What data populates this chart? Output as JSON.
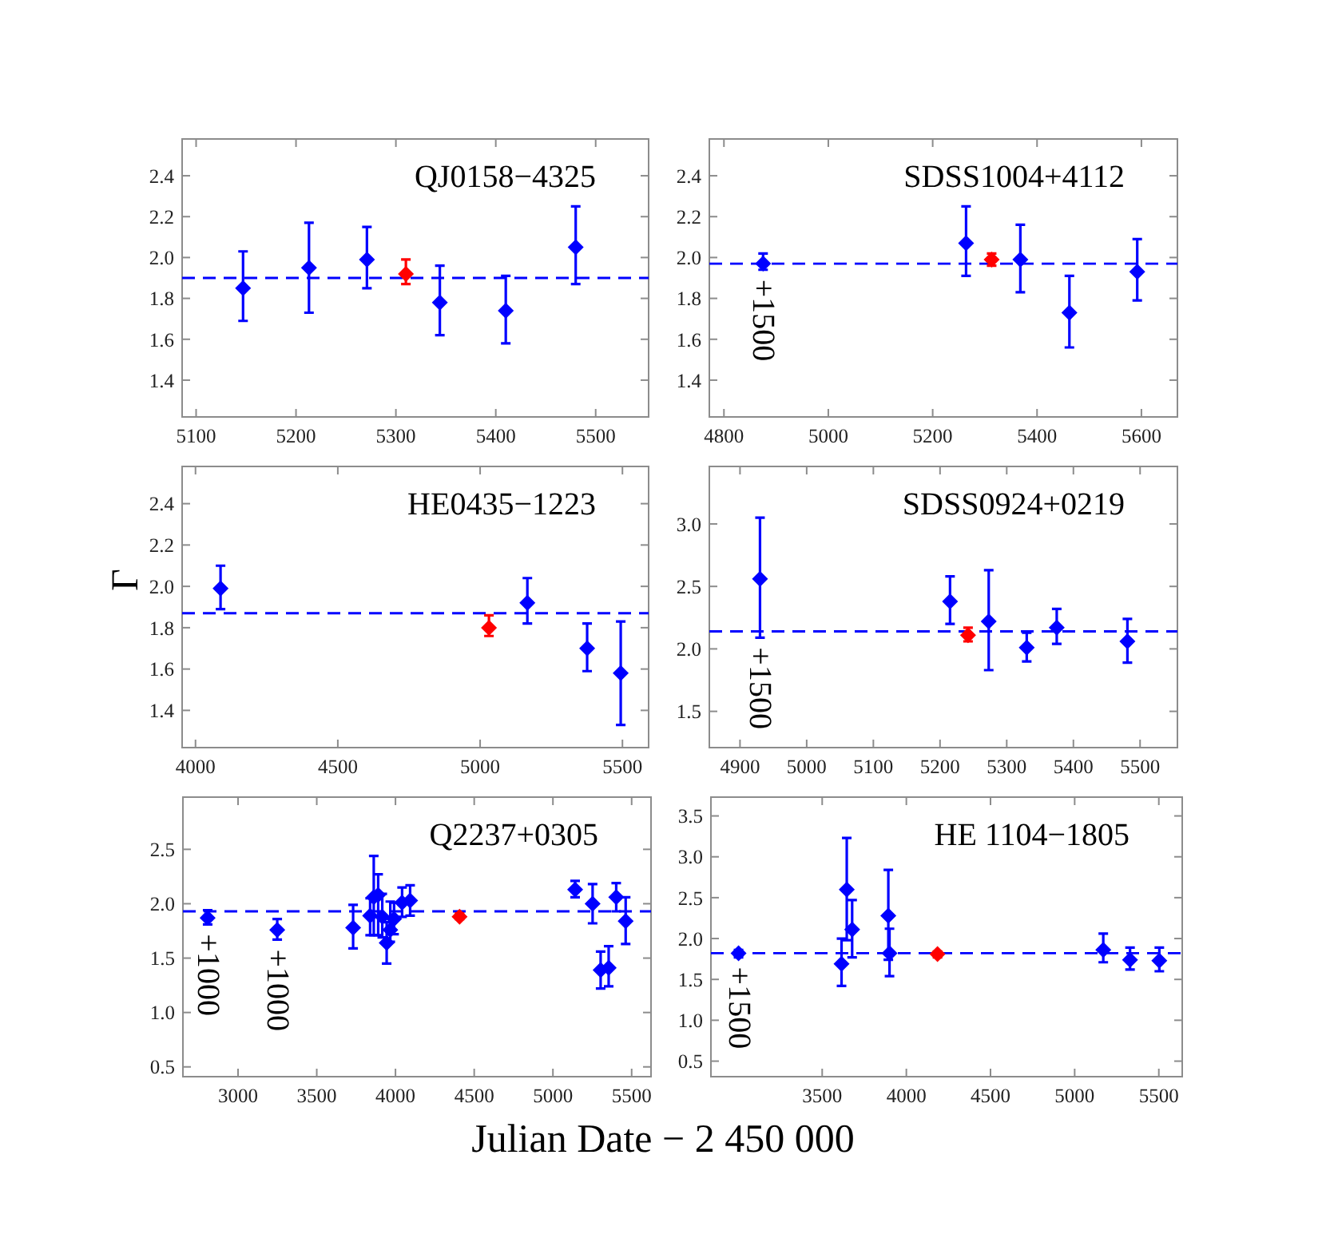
{
  "chart_data": [
    {
      "type": "scatter",
      "title": "QJ0158−4325",
      "xlim": [
        5086,
        5553
      ],
      "ylim": [
        1.22,
        2.58
      ],
      "xticks": [
        5100,
        5200,
        5300,
        5400,
        5500
      ],
      "yticks": [
        1.4,
        1.6,
        1.8,
        {
          "value": 2,
          "label": "2.0"
        },
        2.2,
        2.4
      ],
      "marker": "diamond",
      "series": [
        {
          "color": "#0000ff",
          "x": [
            5147,
            5213,
            5271,
            5344,
            5410,
            5480
          ],
          "values": [
            1.85,
            1.95,
            1.99,
            1.78,
            1.74,
            2.05
          ],
          "errors": [
            [
              1.69,
              2.03
            ],
            [
              1.73,
              2.17
            ],
            [
              1.85,
              2.15
            ],
            [
              1.62,
              1.96
            ],
            [
              1.58,
              1.91
            ],
            [
              1.87,
              2.25
            ]
          ]
        },
        {
          "color": "#ff0000",
          "x": [
            5310
          ],
          "values": [
            1.92
          ],
          "errors": [
            [
              1.87,
              1.99
            ]
          ]
        }
      ],
      "ref_lines": [
        {
          "axis": "y",
          "value": 1.9,
          "color": "#0000ff",
          "line_style": "dashed"
        }
      ]
    },
    {
      "type": "scatter",
      "title": "SDSS1004+4112",
      "xlim": [
        4772,
        5669
      ],
      "ylim": [
        1.22,
        2.58
      ],
      "xticks": [
        4800,
        5000,
        5200,
        5400,
        5600
      ],
      "yticks": [
        1.4,
        1.6,
        1.8,
        {
          "value": 2,
          "label": "2.0"
        },
        2.2,
        2.4
      ],
      "marker": "diamond",
      "series": [
        {
          "color": "#0000ff",
          "x": [
            4875,
            5264,
            5368,
            5462,
            5592
          ],
          "values": [
            1.97,
            2.07,
            1.99,
            1.73,
            1.93
          ],
          "errors": [
            [
              1.94,
              2.02
            ],
            [
              1.91,
              2.25
            ],
            [
              1.83,
              2.16
            ],
            [
              1.56,
              1.91
            ],
            [
              1.79,
              2.09
            ]
          ]
        },
        {
          "color": "#ff0000",
          "x": [
            5313
          ],
          "values": [
            1.99
          ],
          "errors": [
            [
              1.96,
              2.02
            ]
          ]
        }
      ],
      "ref_lines": [
        {
          "axis": "y",
          "value": 1.97,
          "color": "#0000ff",
          "line_style": "dashed"
        }
      ],
      "annotations": [
        {
          "text": "+1500",
          "x": 4875,
          "y": 1.94
        }
      ]
    },
    {
      "type": "scatter",
      "title": "HE0435−1223",
      "ylabel": "Γ",
      "xlim": [
        3953,
        5592
      ],
      "ylim": [
        1.22,
        2.58
      ],
      "xticks": [
        4000,
        4500,
        5000,
        5500
      ],
      "yticks": [
        1.4,
        1.6,
        1.8,
        {
          "value": 2,
          "label": "2.0"
        },
        2.2,
        2.4
      ],
      "marker": "diamond",
      "series": [
        {
          "color": "#0000ff",
          "x": [
            4088,
            5166,
            5376,
            5494
          ],
          "values": [
            1.99,
            1.92,
            1.7,
            1.58
          ],
          "errors": [
            [
              1.89,
              2.1
            ],
            [
              1.82,
              2.04
            ],
            [
              1.59,
              1.82
            ],
            [
              1.33,
              1.83
            ]
          ]
        },
        {
          "color": "#ff0000",
          "x": [
            5031
          ],
          "values": [
            1.8
          ],
          "errors": [
            [
              1.76,
              1.86
            ]
          ]
        }
      ],
      "ref_lines": [
        {
          "axis": "y",
          "value": 1.87,
          "color": "#0000ff",
          "line_style": "dashed"
        }
      ]
    },
    {
      "type": "scatter",
      "title": "SDSS0924+0219",
      "xlim": [
        4854,
        5556
      ],
      "ylim": [
        1.21,
        3.46
      ],
      "xticks": [
        4900,
        5000,
        5100,
        5200,
        5300,
        5400,
        5500
      ],
      "yticks": [
        1.5,
        {
          "value": 2,
          "label": "2.0"
        },
        2.5,
        {
          "value": 3,
          "label": "3.0"
        }
      ],
      "marker": "diamond",
      "series": [
        {
          "color": "#0000ff",
          "x": [
            4930,
            5215,
            5273,
            5330,
            5375,
            5481
          ],
          "values": [
            2.56,
            2.38,
            2.22,
            2.01,
            2.17,
            2.06
          ],
          "errors": [
            [
              2.09,
              3.05
            ],
            [
              2.2,
              2.58
            ],
            [
              1.83,
              2.63
            ],
            [
              1.9,
              2.13
            ],
            [
              2.04,
              2.32
            ],
            [
              1.89,
              2.24
            ]
          ]
        },
        {
          "color": "#ff0000",
          "x": [
            5242
          ],
          "values": [
            2.11
          ],
          "errors": [
            [
              2.06,
              2.17
            ]
          ]
        }
      ],
      "ref_lines": [
        {
          "axis": "y",
          "value": 2.14,
          "color": "#0000ff",
          "line_style": "dashed"
        }
      ],
      "annotations": [
        {
          "text": "+1500",
          "x": 4930,
          "y": 2.09
        }
      ]
    },
    {
      "type": "scatter",
      "title": "Q2237+0305",
      "xlabel": "Julian Date − 2 450 000",
      "xlim": [
        2650,
        5623
      ],
      "ylim": [
        0.41,
        2.98
      ],
      "xticks": [
        3000,
        3500,
        4000,
        4500,
        5000,
        5500
      ],
      "yticks": [
        0.5,
        {
          "value": 1,
          "label": "1.0"
        },
        1.5,
        {
          "value": 2,
          "label": "2.0"
        },
        2.5
      ],
      "marker": "diamond",
      "series": [
        {
          "color": "#0000ff",
          "x": [
            2807,
            3249,
            3731,
            3839,
            3862,
            3890,
            3916,
            3944,
            3967,
            3991,
            4042,
            4093,
            5141,
            5252,
            5303,
            5354,
            5402,
            5462
          ],
          "values": [
            1.87,
            1.76,
            1.78,
            1.89,
            2.06,
            2.08,
            1.88,
            1.64,
            1.76,
            1.86,
            2.01,
            2.03,
            2.13,
            2.0,
            1.39,
            1.41,
            2.06,
            1.84
          ],
          "errors": [
            [
              1.81,
              1.94
            ],
            [
              1.67,
              1.86
            ],
            [
              1.59,
              1.99
            ],
            [
              1.71,
              2.05
            ],
            [
              1.71,
              2.44
            ],
            [
              1.71,
              2.27
            ],
            [
              1.69,
              2.09
            ],
            [
              1.45,
              1.83
            ],
            [
              1.65,
              2.02
            ],
            [
              1.72,
              2.01
            ],
            [
              1.88,
              2.15
            ],
            [
              1.89,
              2.17
            ],
            [
              2.06,
              2.21
            ],
            [
              1.82,
              2.18
            ],
            [
              1.22,
              1.56
            ],
            [
              1.24,
              1.61
            ],
            [
              1.93,
              2.19
            ],
            [
              1.63,
              2.06
            ]
          ]
        },
        {
          "color": "#ff0000",
          "x": [
            4407
          ],
          "values": [
            1.88
          ],
          "errors": [
            [
              1.86,
              1.91
            ]
          ]
        }
      ],
      "ref_lines": [
        {
          "axis": "y",
          "value": 1.93,
          "color": "#0000ff",
          "line_style": "dashed"
        }
      ],
      "annotations": [
        {
          "text": "+1000",
          "x": 2807,
          "y": 1.81
        },
        {
          "text": "+1000",
          "x": 3249,
          "y": 1.67
        }
      ]
    },
    {
      "type": "scatter",
      "title": "HE 1104−1805",
      "xlim": [
        2839,
        5639
      ],
      "ylim": [
        0.31,
        3.73
      ],
      "xticks": [
        3500,
        4000,
        4500,
        5000,
        5500
      ],
      "yticks": [
        0.5,
        {
          "value": 1,
          "label": "1.0"
        },
        1.5,
        {
          "value": 2,
          "label": "2.0"
        },
        2.5,
        {
          "value": 3,
          "label": "3.0"
        },
        3.5
      ],
      "marker": "diamond",
      "series": [
        {
          "color": "#0000ff",
          "x": [
            3003,
            3615,
            3646,
            3678,
            3893,
            3900,
            5170,
            5329,
            5503
          ],
          "values": [
            1.82,
            1.69,
            2.6,
            2.11,
            2.28,
            1.82,
            1.86,
            1.74,
            1.73
          ],
          "errors": [
            [
              1.77,
              1.86
            ],
            [
              1.42,
              2.0
            ],
            [
              1.98,
              3.23
            ],
            [
              1.77,
              2.47
            ],
            [
              1.74,
              2.84
            ],
            [
              1.54,
              2.12
            ],
            [
              1.71,
              2.06
            ],
            [
              1.62,
              1.89
            ],
            [
              1.6,
              1.89
            ]
          ]
        },
        {
          "color": "#ff0000",
          "x": [
            4185
          ],
          "values": [
            1.81
          ],
          "errors": [
            [
              1.77,
              1.84
            ]
          ]
        }
      ],
      "ref_lines": [
        {
          "axis": "y",
          "value": 1.82,
          "color": "#0000ff",
          "line_style": "dashed"
        }
      ],
      "annotations": [
        {
          "text": "+1500",
          "x": 3003,
          "y": 1.77
        }
      ]
    }
  ]
}
